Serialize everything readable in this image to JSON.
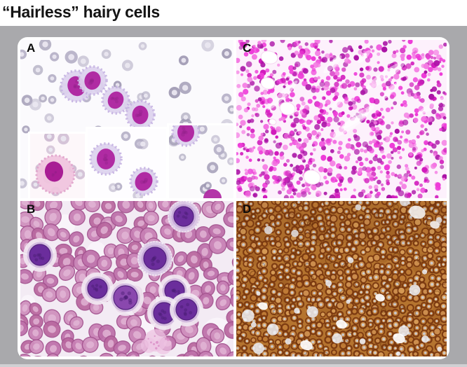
{
  "figure": {
    "title": "“Hairless” hairy cells"
  },
  "board": {
    "background": "#a9a9ac",
    "frame_background": "#ffffff",
    "bottom_strip": "#d0d0d3"
  },
  "panels": [
    {
      "id": "A",
      "label": "A",
      "kind": "blood-smear-hairy-cells",
      "palette": {
        "background": "#fbfafd",
        "rbc_ring": "#b4aec5",
        "rbc_dark": "#9d97b1",
        "rbc_center": "#eae7f0",
        "cytoplasm": "#ddd2ee",
        "cytoplasm_edge": "#c5b2e2",
        "nucleus": "#b02ba3",
        "nucleus_dark": "#8e1f86",
        "inset_pink_cytoplasm": "#f0c4de",
        "inset_pink_edge": "#e0a3cb",
        "inset_nucleus": "#a81d94"
      }
    },
    {
      "id": "B",
      "label": "B",
      "kind": "blood-smear-dense-rbc",
      "palette": {
        "background": "#f3ebf4",
        "rbc_fill": "#c77fb4",
        "rbc_fill_alt1": "#bd6fa9",
        "rbc_fill_alt2": "#cf8fbd",
        "rbc_fill_alt3": "#b9679f",
        "rbc_edge": "#a4538f",
        "rbc_center": "#e2b7d6",
        "lymph_nucleus": "#6b2d9c",
        "lymph_nucleus_light": "#8a48ae",
        "lymph_dark": "#4a1d73",
        "lymph_rim": "#a97fc8",
        "lymph_halo": "#c9aede",
        "smudge": "#eec3e2",
        "smudge_speck": "#d98cc6"
      }
    },
    {
      "id": "C",
      "label": "C",
      "kind": "marrow-he-stain",
      "palette": {
        "background": "#fdf1fc",
        "cell_colors": [
          "#ee3cd8",
          "#d11cbc",
          "#ab14a6",
          "#f47ae2"
        ],
        "hole": "#ffffff",
        "hole_edge": "#f6d6f0",
        "streak": "#ffffff"
      }
    },
    {
      "id": "D",
      "label": "D",
      "kind": "ihc-brown-stain",
      "palette": {
        "background": "#b5742f",
        "membrane": "#7a3810",
        "membrane_dark": "#5f2a08",
        "cell_fill_light": "#d89d58",
        "cell_fill_mid": "#c07c36",
        "cell_fill_alt": "#cf9050",
        "nucleus_blue": "#ccd8ea",
        "patch": "#eef2f9",
        "patch_white": "#ffffff",
        "mottle": "#8a4a16"
      }
    }
  ]
}
